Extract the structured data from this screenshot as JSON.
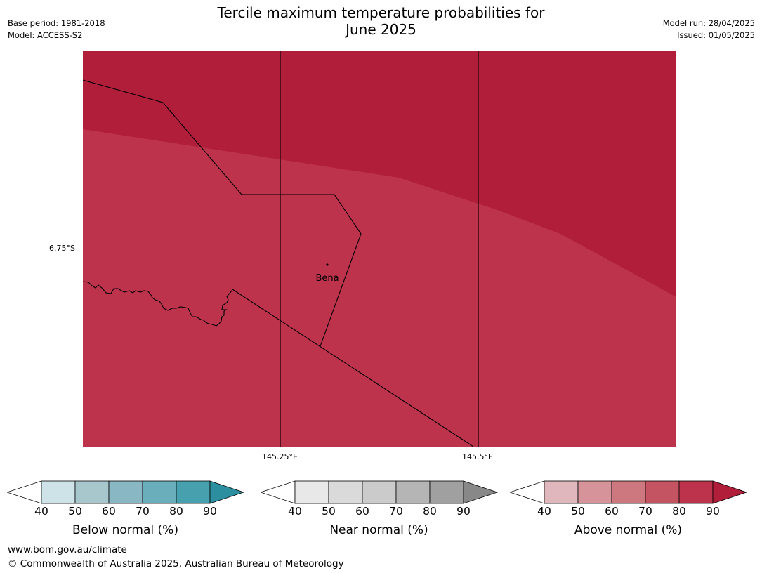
{
  "header": {
    "title_line1": "Tercile maximum temperature probabilities for",
    "title_line2": "June 2025",
    "base_period": "Base period: 1981-2018",
    "model": "Model: ACCESS-S2",
    "model_run": "Model run: 28/04/2025",
    "issued": "Issued: 01/05/2025"
  },
  "map": {
    "lat_label": "6.75°S",
    "lon_labels": [
      "145.25°E",
      "145.5°E"
    ],
    "place_label": "Bena",
    "colors": {
      "above_90": "#b01e3a",
      "above_80": "#bd334b"
    }
  },
  "legend": {
    "ticks": [
      "40",
      "50",
      "60",
      "70",
      "80",
      "90"
    ],
    "below_label": "Below normal (%)",
    "near_label": "Near normal (%)",
    "above_label": "Above normal (%)",
    "below_colors": [
      "#ffffff",
      "#cde3e8",
      "#a8c7cd",
      "#89b7c3",
      "#6aaebb",
      "#46a0ae",
      "#2c8fa0"
    ],
    "near_colors": [
      "#ffffff",
      "#e8e8e8",
      "#dadada",
      "#cbcbcb",
      "#b5b5b5",
      "#a0a0a0",
      "#888888"
    ],
    "above_colors": [
      "#ffffff",
      "#e0b7bc",
      "#d7939a",
      "#cd777e",
      "#c45462",
      "#bd334b",
      "#b01e3a"
    ]
  },
  "footer": {
    "url": "www.bom.gov.au/climate",
    "copyright": "© Commonwealth of Australia 2025, Australian Bureau of Meteorology"
  }
}
